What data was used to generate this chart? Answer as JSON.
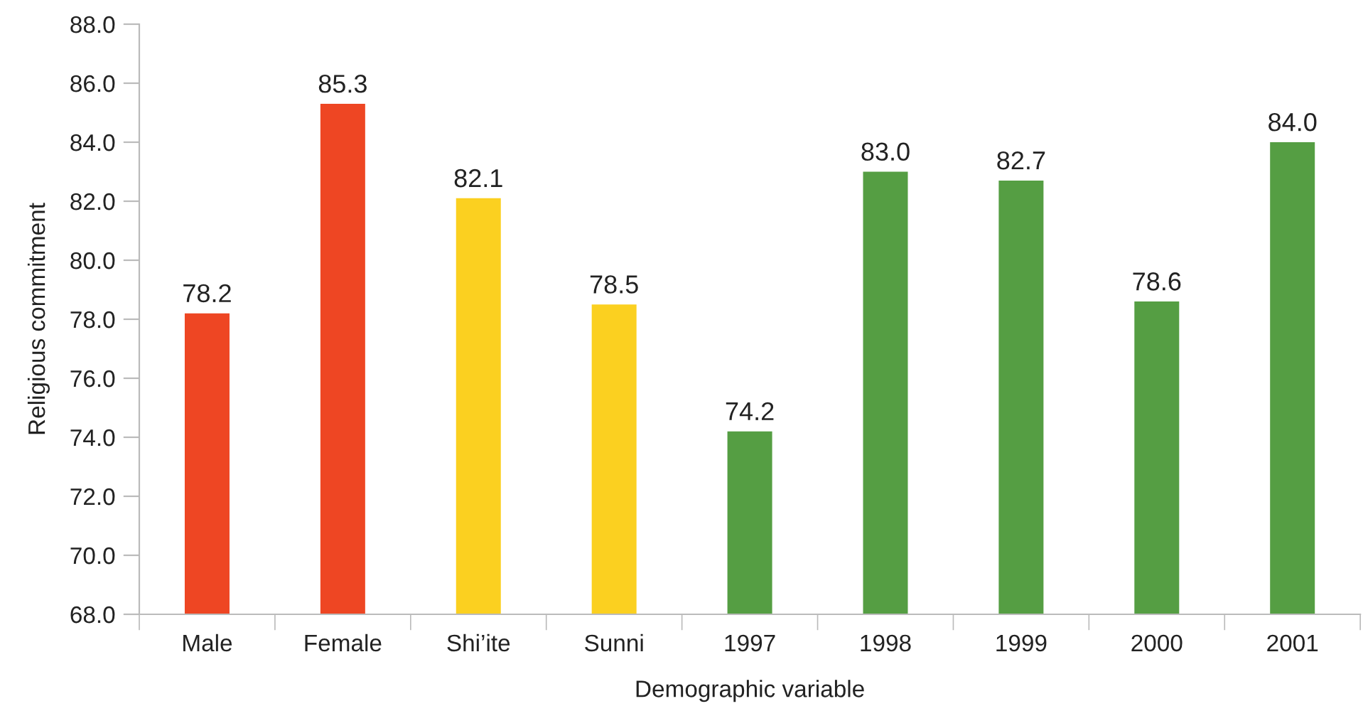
{
  "chart_data": {
    "type": "bar",
    "xlabel": "Demographic variable",
    "ylabel": "Religious commitment",
    "categories": [
      "Male",
      "Female",
      "Shi’ite",
      "Sunni",
      "1997",
      "1998",
      "1999",
      "2000",
      "2001"
    ],
    "values": [
      78.2,
      85.3,
      82.1,
      78.5,
      74.2,
      83.0,
      82.7,
      78.6,
      84.0
    ],
    "value_labels": [
      "78.2",
      "85.3",
      "82.1",
      "78.5",
      "74.2",
      "83.0",
      "82.7",
      "78.6",
      "84.0"
    ],
    "colors": [
      "#ee4623",
      "#ee4623",
      "#fbd020",
      "#fbd020",
      "#559e43",
      "#559e43",
      "#559e43",
      "#559e43",
      "#559e43"
    ],
    "ylim": [
      68.0,
      88.0
    ],
    "yticks": [
      {
        "value": 68,
        "label": "68.0"
      },
      {
        "value": 70,
        "label": "70.0"
      },
      {
        "value": 72,
        "label": "72.0"
      },
      {
        "value": 74,
        "label": "74.0"
      },
      {
        "value": 76,
        "label": "76.0"
      },
      {
        "value": 78,
        "label": "78.0"
      },
      {
        "value": 80,
        "label": "80.0"
      },
      {
        "value": 82,
        "label": "82.0"
      },
      {
        "value": 84,
        "label": "84.0"
      },
      {
        "value": 86,
        "label": "86.0"
      },
      {
        "value": 88,
        "label": "88.0"
      }
    ],
    "grid": false
  }
}
